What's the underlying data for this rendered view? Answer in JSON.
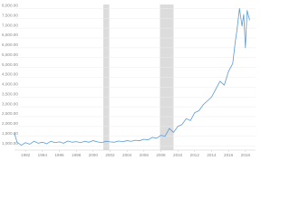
{
  "chart_data": {
    "type": "line",
    "x": [
      1990.7,
      1991.0,
      1991.5,
      1992.0,
      1992.5,
      1993.0,
      1993.5,
      1994.0,
      1994.5,
      1995.0,
      1995.5,
      1996.0,
      1996.5,
      1997.0,
      1997.5,
      1998.0,
      1998.5,
      1999.0,
      1999.5,
      2000.0,
      2000.5,
      2001.0,
      2001.5,
      2002.0,
      2002.5,
      2003.0,
      2003.5,
      2004.0,
      2004.5,
      2005.0,
      2005.5,
      2006.0,
      2006.5,
      2007.0,
      2007.5,
      2008.0,
      2008.5,
      2009.0,
      2009.5,
      2010.0,
      2010.5,
      2011.0,
      2011.5,
      2012.0,
      2012.5,
      2013.0,
      2013.5,
      2014.0,
      2014.5,
      2015.0,
      2015.5,
      2016.0,
      2016.5,
      2016.8,
      2017.0,
      2017.3,
      2017.6,
      2017.8,
      2018.0,
      2018.2,
      2018.5
    ],
    "series": [
      {
        "color": "#5b9bd5",
        "values": [
          1650,
          1200,
          1050,
          1180,
          1100,
          1250,
          1150,
          1200,
          1120,
          1250,
          1180,
          1220,
          1150,
          1260,
          1200,
          1230,
          1180,
          1250,
          1200,
          1280,
          1220,
          1180,
          1250,
          1220,
          1200,
          1260,
          1230,
          1280,
          1250,
          1300,
          1280,
          1350,
          1320,
          1450,
          1400,
          1550,
          1500,
          1900,
          1700,
          2000,
          2100,
          2400,
          2300,
          2700,
          2800,
          3100,
          3300,
          3500,
          3900,
          4300,
          4100,
          4800,
          5200,
          6300,
          6900,
          8000,
          7100,
          7700,
          6000,
          7900,
          7400
        ]
      }
    ],
    "recessions": [
      [
        2001.2,
        2001.9
      ],
      [
        2007.9,
        2009.5
      ]
    ],
    "xlim": [
      1990.7,
      2019.2
    ],
    "xticks": [
      1992,
      1994,
      1996,
      1998,
      2000,
      2002,
      2004,
      2006,
      2008,
      2010,
      2012,
      2014,
      2016,
      2018
    ],
    "ylim": [
      800,
      8200
    ],
    "yticks": [
      {
        "value": 1000,
        "label": "1,000.00"
      },
      {
        "value": 1500,
        "label": "1,500.00"
      },
      {
        "value": 2000,
        "label": "2,000.00"
      },
      {
        "value": 2500,
        "label": "2,500.00"
      },
      {
        "value": 3000,
        "label": "3,000.00"
      },
      {
        "value": 3500,
        "label": "3,500.00"
      },
      {
        "value": 4000,
        "label": "4,000.00"
      },
      {
        "value": 4500,
        "label": "4,500.00"
      },
      {
        "value": 5000,
        "label": "5,000.00"
      },
      {
        "value": 5500,
        "label": "5,500.00"
      },
      {
        "value": 6000,
        "label": "6,000.00"
      },
      {
        "value": 6500,
        "label": "6,500.00"
      },
      {
        "value": 7000,
        "label": "7,000.00"
      },
      {
        "value": 7500,
        "label": "7,500.00"
      },
      {
        "value": 8000,
        "label": "8,000.00"
      }
    ],
    "grid": true
  }
}
